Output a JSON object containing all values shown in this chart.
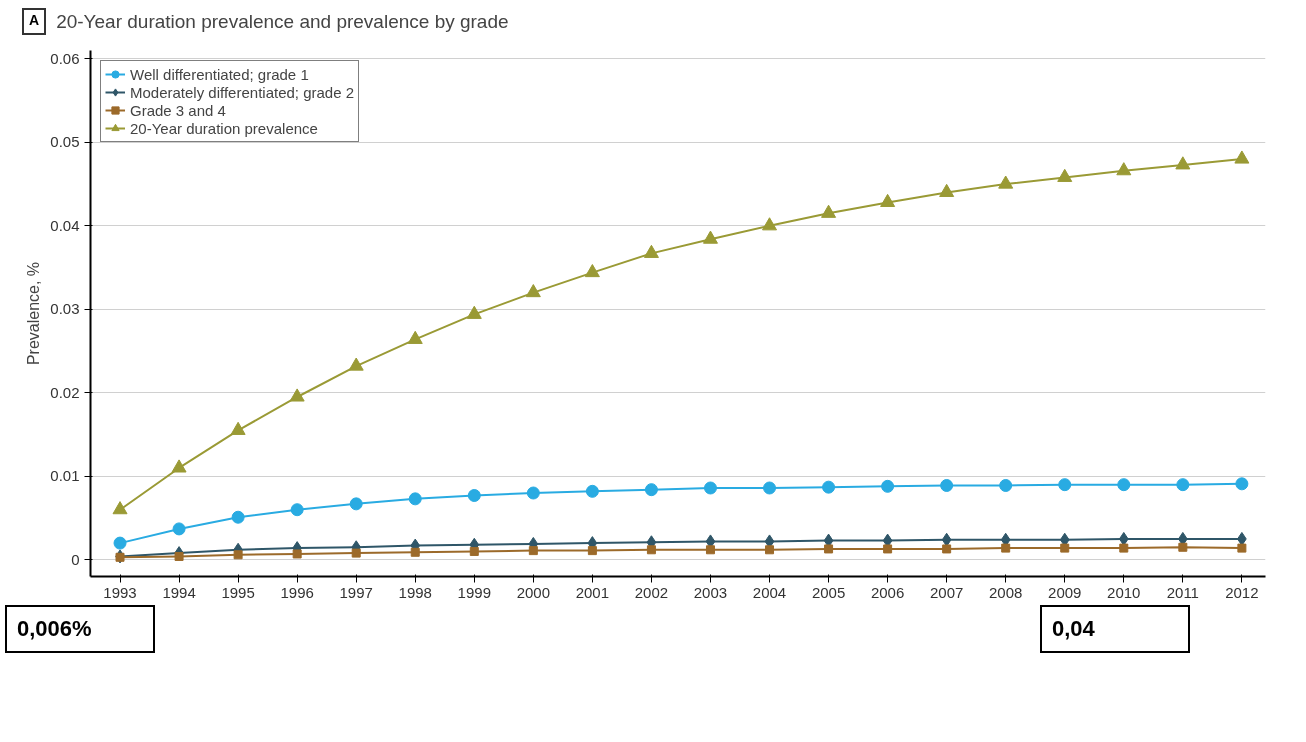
{
  "chart_data": {
    "type": "line",
    "title": "20-Year duration prevalence and prevalence by grade",
    "ylabel": "Prevalence, %",
    "annotations": [
      "A",
      "0,006%",
      "0,04"
    ],
    "categories": [
      "1993",
      "1994",
      "1995",
      "1996",
      "1997",
      "1998",
      "1999",
      "2000",
      "2001",
      "2002",
      "2003",
      "2004",
      "2005",
      "2006",
      "2007",
      "2008",
      "2009",
      "2010",
      "2011",
      "2012"
    ],
    "series": [
      {
        "name": "Well differentiated; grade 1",
        "color": "#29abe2",
        "marker": "circle",
        "values": [
          0.002,
          0.0037,
          0.0051,
          0.006,
          0.0067,
          0.0073,
          0.0077,
          0.008,
          0.0082,
          0.0084,
          0.0086,
          0.0086,
          0.0087,
          0.0088,
          0.0089,
          0.0089,
          0.009,
          0.009,
          0.009,
          0.0091
        ]
      },
      {
        "name": "Moderately differentiated; grade 2",
        "color": "#2f5668",
        "marker": "diamond",
        "values": [
          0.0004,
          0.0008,
          0.0012,
          0.0014,
          0.0015,
          0.0017,
          0.0018,
          0.0019,
          0.002,
          0.0021,
          0.0022,
          0.0022,
          0.0023,
          0.0023,
          0.0024,
          0.0024,
          0.0024,
          0.0025,
          0.0025,
          0.0025
        ]
      },
      {
        "name": "Grade 3 and 4",
        "color": "#9c6a2a",
        "marker": "square",
        "values": [
          0.0003,
          0.0004,
          0.0006,
          0.0007,
          0.0008,
          0.0009,
          0.001,
          0.0011,
          0.0011,
          0.0012,
          0.0012,
          0.0012,
          0.0013,
          0.0013,
          0.0013,
          0.0014,
          0.0014,
          0.0014,
          0.0015,
          0.0014
        ]
      },
      {
        "name": "20-Year duration prevalence",
        "color": "#9a9a35",
        "marker": "triangle",
        "values": [
          0.006,
          0.011,
          0.0155,
          0.0195,
          0.0232,
          0.0264,
          0.0294,
          0.032,
          0.0344,
          0.0367,
          0.0384,
          0.04,
          0.0415,
          0.0428,
          0.044,
          0.045,
          0.0458,
          0.0466,
          0.0473,
          0.048
        ]
      }
    ],
    "ylim": [
      -0.002,
      0.061
    ],
    "yticks": [
      0,
      0.01,
      0.02,
      0.03,
      0.04,
      0.05,
      0.06
    ],
    "grid": "y",
    "legend": "top left"
  }
}
